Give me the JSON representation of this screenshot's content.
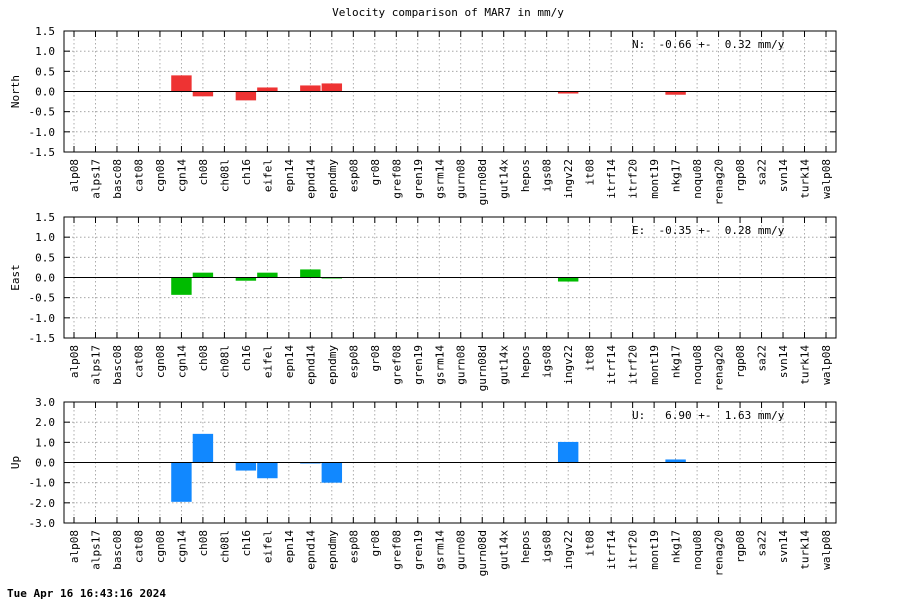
{
  "title": "Velocity comparison of MAR7 in mm/y",
  "footer": "Tue Apr 16 16:43:16 2024",
  "chart_data": [
    {
      "type": "bar",
      "ylabel": "North",
      "stat": "N:  -0.66 +-  0.32 mm/y",
      "color": "#ee3333",
      "ylim": [
        -1.5,
        1.5
      ],
      "yticks": [
        "-1.5",
        "-1.0",
        "-0.5",
        "0.0",
        "0.5",
        "1.0",
        "1.5"
      ],
      "grid": true,
      "categories": [
        "alp08",
        "alps17",
        "basc08",
        "cat08",
        "cgn08",
        "cgn14",
        "ch08",
        "ch08l",
        "ch16",
        "eifel",
        "epn14",
        "epnd14",
        "epndmy",
        "esp08",
        "gr08",
        "gref08",
        "gren19",
        "gsrm14",
        "gurn08",
        "gurn08d",
        "gut14x",
        "hepos",
        "igs08",
        "ingv22",
        "it08",
        "itrf14",
        "itrf20",
        "mont19",
        "nkg17",
        "noqu08",
        "renag20",
        "rgp08",
        "sa22",
        "svn14",
        "turk14",
        "walp08"
      ],
      "values": [
        0,
        0,
        0,
        0,
        0,
        0.4,
        -0.12,
        0,
        -0.22,
        0.1,
        0,
        0.15,
        0.2,
        0,
        0,
        0,
        0,
        0,
        0,
        0,
        0,
        0,
        0,
        -0.05,
        0,
        0,
        0,
        0,
        -0.08,
        0,
        0,
        0,
        0,
        0,
        0,
        0
      ]
    },
    {
      "type": "bar",
      "ylabel": "East",
      "stat": "E:  -0.35 +-  0.28 mm/y",
      "color": "#00bb00",
      "ylim": [
        -1.5,
        1.5
      ],
      "yticks": [
        "-1.5",
        "-1.0",
        "-0.5",
        "0.0",
        "0.5",
        "1.0",
        "1.5"
      ],
      "grid": true,
      "categories": [
        "alp08",
        "alps17",
        "basc08",
        "cat08",
        "cgn08",
        "cgn14",
        "ch08",
        "ch08l",
        "ch16",
        "eifel",
        "epn14",
        "epnd14",
        "epndmy",
        "esp08",
        "gr08",
        "gref08",
        "gren19",
        "gsrm14",
        "gurn08",
        "gurn08d",
        "gut14x",
        "hepos",
        "igs08",
        "ingv22",
        "it08",
        "itrf14",
        "itrf20",
        "mont19",
        "nkg17",
        "noqu08",
        "renag20",
        "rgp08",
        "sa22",
        "svn14",
        "turk14",
        "walp08"
      ],
      "values": [
        0,
        0,
        0,
        0,
        0,
        -0.43,
        0.12,
        0,
        -0.08,
        0.12,
        0,
        0.2,
        -0.02,
        0,
        0,
        0,
        0,
        0,
        0,
        0,
        0,
        0,
        0,
        -0.1,
        0,
        0,
        0,
        0,
        0,
        0,
        0,
        0,
        0,
        0,
        0,
        0
      ]
    },
    {
      "type": "bar",
      "ylabel": "Up",
      "stat": "U:   6.90 +-  1.63 mm/y",
      "color": "#1188ff",
      "ylim": [
        -3.0,
        3.0
      ],
      "yticks": [
        "-3.0",
        "-2.0",
        "-1.0",
        "0.0",
        "1.0",
        "2.0",
        "3.0"
      ],
      "grid": true,
      "categories": [
        "alp08",
        "alps17",
        "basc08",
        "cat08",
        "cgn08",
        "cgn14",
        "ch08",
        "ch08l",
        "ch16",
        "eifel",
        "epn14",
        "epnd14",
        "epndmy",
        "esp08",
        "gr08",
        "gref08",
        "gren19",
        "gsrm14",
        "gurn08",
        "gurn08d",
        "gut14x",
        "hepos",
        "igs08",
        "ingv22",
        "it08",
        "itrf14",
        "itrf20",
        "mont19",
        "nkg17",
        "noqu08",
        "renag20",
        "rgp08",
        "sa22",
        "svn14",
        "turk14",
        "walp08"
      ],
      "values": [
        0,
        0,
        0,
        0,
        0,
        -1.95,
        1.42,
        0,
        -0.4,
        -0.78,
        0,
        -0.05,
        -1.0,
        0,
        0,
        0,
        0,
        0,
        0,
        0,
        0,
        0,
        0,
        1.02,
        0,
        0,
        0,
        0,
        0.15,
        0,
        0,
        0,
        0,
        0,
        0,
        0
      ]
    }
  ]
}
